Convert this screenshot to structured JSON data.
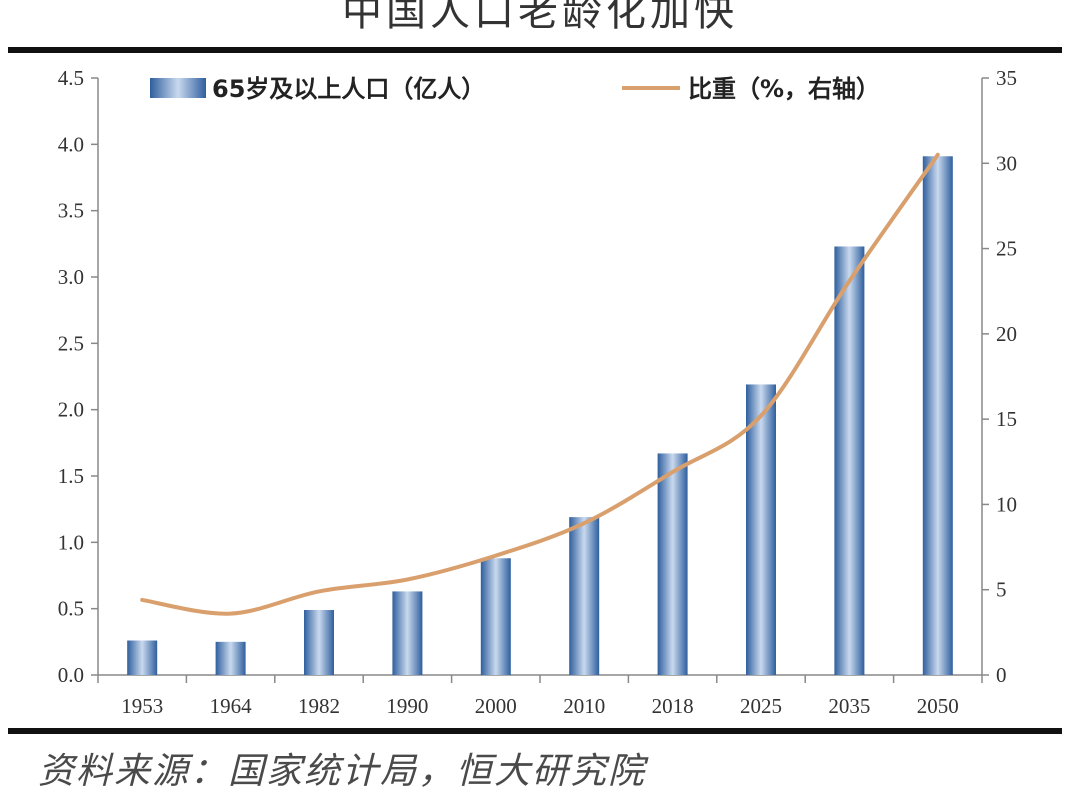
{
  "title": "中国人口老龄化加快",
  "source": "资料来源：国家统计局，恒大研究院",
  "chart_data": {
    "type": "bar",
    "categories": [
      "1953",
      "1964",
      "1982",
      "1990",
      "2000",
      "2010",
      "2018",
      "2025",
      "2035",
      "2050"
    ],
    "series": [
      {
        "name": "65岁及以上人口（亿人）",
        "type": "bar",
        "axis": "left",
        "values": [
          0.26,
          0.25,
          0.49,
          0.63,
          0.88,
          1.19,
          1.67,
          2.19,
          3.23,
          3.91
        ]
      },
      {
        "name": "比重（%，右轴）",
        "type": "line",
        "axis": "right",
        "values": [
          4.4,
          3.6,
          4.9,
          5.6,
          7.0,
          8.9,
          11.9,
          15.2,
          23.1,
          30.5
        ]
      }
    ],
    "y_left": {
      "min": 0,
      "max": 4.5,
      "ticks": [
        "0.0",
        "0.5",
        "1.0",
        "1.5",
        "2.0",
        "2.5",
        "3.0",
        "3.5",
        "4.0",
        "4.5"
      ]
    },
    "y_right": {
      "min": 0,
      "max": 35,
      "ticks": [
        "0",
        "5",
        "10",
        "15",
        "20",
        "25",
        "30",
        "35"
      ]
    },
    "legend_position": "top",
    "grid": false,
    "colors": {
      "bar": "#4a7ab8",
      "bar_light": "#c9d9ee",
      "line": "#d9a06e",
      "axis": "#888888",
      "rule": "#111111"
    }
  }
}
